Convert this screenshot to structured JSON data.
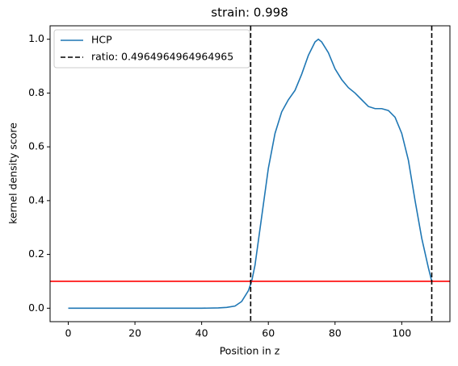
{
  "chart_data": {
    "type": "line",
    "title": "strain: 0.998",
    "xlabel": "Position in z",
    "ylabel": "kernel density score",
    "x": [
      0,
      5,
      10,
      15,
      20,
      25,
      30,
      35,
      40,
      45,
      47.5,
      50,
      52,
      54,
      55,
      56,
      58,
      60,
      62,
      64,
      66,
      68,
      70,
      72,
      74,
      75,
      76,
      78,
      80,
      82,
      84,
      86,
      88,
      90,
      92,
      94,
      96,
      98,
      100,
      102,
      104,
      106,
      108,
      109
    ],
    "series": [
      {
        "name": "HCP",
        "color": "#1f77b4",
        "values": [
          0,
          0,
          0,
          0,
          0,
          0,
          0,
          0,
          0,
          0.001,
          0.003,
          0.008,
          0.025,
          0.065,
          0.1,
          0.16,
          0.34,
          0.52,
          0.65,
          0.73,
          0.775,
          0.81,
          0.87,
          0.94,
          0.99,
          1.0,
          0.99,
          0.95,
          0.89,
          0.85,
          0.82,
          0.8,
          0.775,
          0.75,
          0.742,
          0.742,
          0.735,
          0.71,
          0.65,
          0.55,
          0.4,
          0.26,
          0.15,
          0.1
        ]
      }
    ],
    "vlines": {
      "name": "ratio: 0.4964964964964965",
      "color": "#000000",
      "values": [
        54.7,
        109
      ]
    },
    "hline": {
      "value": 0.1,
      "color": "#ff0000"
    },
    "xlim": [
      -5.45,
      114.45
    ],
    "xticks": [
      0,
      20,
      40,
      60,
      80,
      100
    ],
    "ylim": [
      -0.05,
      1.05
    ],
    "yticks": [
      {
        "value": 0,
        "label": "0.0"
      },
      0.2,
      0.4,
      0.6,
      0.8,
      {
        "value": 1,
        "label": "1.0"
      }
    ],
    "legend": "upper left"
  }
}
